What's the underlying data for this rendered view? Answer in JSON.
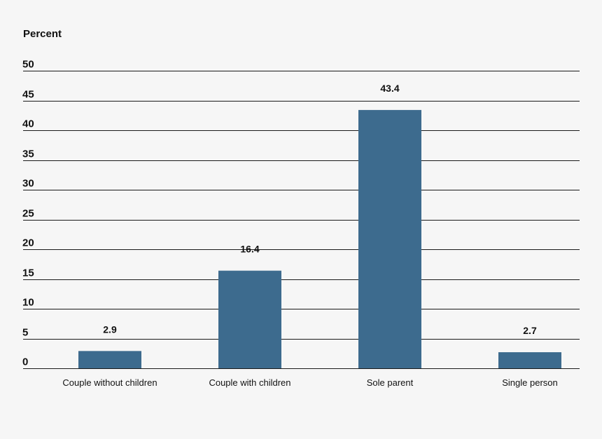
{
  "chart_data": {
    "type": "bar",
    "title": "",
    "xlabel": "",
    "ylabel": "Percent",
    "ylim": [
      0,
      50
    ],
    "yticks": [
      0,
      5,
      10,
      15,
      20,
      25,
      30,
      35,
      40,
      45,
      50
    ],
    "grid": true,
    "categories": [
      "Couple without children",
      "Couple with children",
      "Sole parent",
      "Single person"
    ],
    "values": [
      2.9,
      16.4,
      43.4,
      2.7
    ],
    "value_labels": [
      "2.9",
      "16.4",
      "43.4",
      "2.7"
    ],
    "bar_color": "#3d6b8e",
    "grid_color": "#1a1a1a",
    "background_color": "#f6f6f6"
  }
}
